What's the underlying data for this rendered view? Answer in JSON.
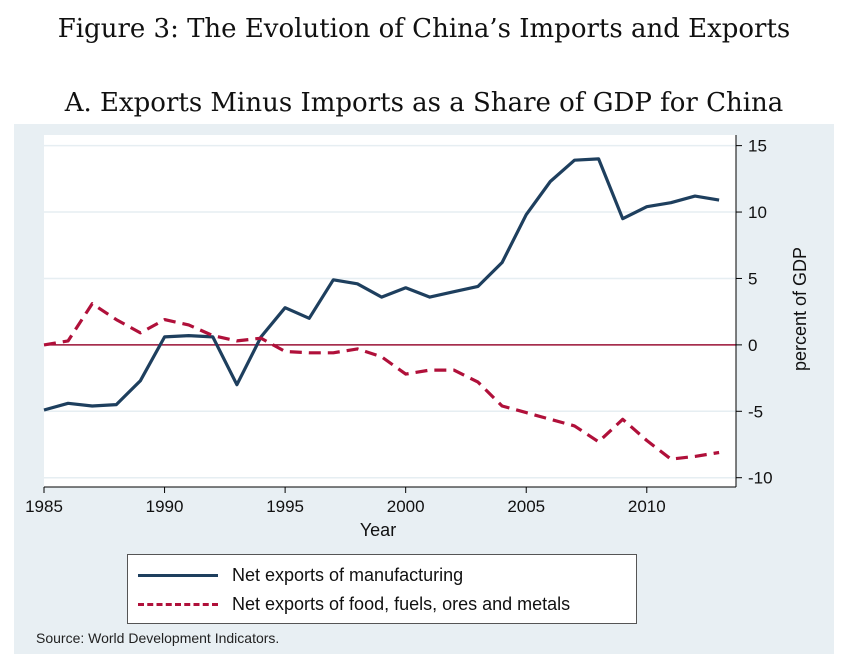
{
  "figure_title": "Figure 3:  The Evolution of China’s Imports and Exports",
  "source": "Source: World Development Indicators.",
  "colors": {
    "background": "#e8eff3",
    "manufacturing": "#1e3f5e",
    "food_fuels": "#b0103a",
    "zero_line": "#9a1035"
  },
  "chart_data": {
    "type": "line",
    "title": "A. Exports Minus Imports as a Share of GDP for China",
    "xlabel": "Year",
    "ylabel": "percent of GDP",
    "xlim": [
      1985,
      2013
    ],
    "ylim": [
      -10,
      15
    ],
    "x_ticks": [
      1985,
      1990,
      1995,
      2000,
      2005,
      2010
    ],
    "y_ticks": [
      15,
      10,
      5,
      0,
      -5,
      -10
    ],
    "y_axis_side": "right",
    "grid": true,
    "legend_position": "bottom",
    "x": [
      1985,
      1986,
      1987,
      1988,
      1989,
      1990,
      1991,
      1992,
      1993,
      1994,
      1995,
      1996,
      1997,
      1998,
      1999,
      2000,
      2001,
      2002,
      2003,
      2004,
      2005,
      2006,
      2007,
      2008,
      2009,
      2010,
      2011,
      2012,
      2013
    ],
    "series": [
      {
        "name": "Net exports of manufacturing",
        "style": "solid",
        "values": [
          -4.9,
          -4.4,
          -4.6,
          -4.5,
          -2.7,
          0.6,
          0.7,
          0.6,
          -3.0,
          0.6,
          2.8,
          2.0,
          4.9,
          4.6,
          3.6,
          4.3,
          3.6,
          4.0,
          4.4,
          6.2,
          9.8,
          12.3,
          13.9,
          14.0,
          9.5,
          10.4,
          10.7,
          11.2,
          10.9
        ]
      },
      {
        "name": "Net exports of food, fuels, ores and metals",
        "style": "dashed",
        "values": [
          0.0,
          0.3,
          3.1,
          1.9,
          0.9,
          1.9,
          1.5,
          0.7,
          0.3,
          0.5,
          -0.5,
          -0.6,
          -0.6,
          -0.3,
          -0.9,
          -2.2,
          -1.9,
          -1.9,
          -2.8,
          -4.6,
          -5.1,
          -5.6,
          -6.1,
          -7.3,
          -5.6,
          -7.2,
          -8.6,
          -8.4,
          -8.1
        ]
      }
    ]
  }
}
